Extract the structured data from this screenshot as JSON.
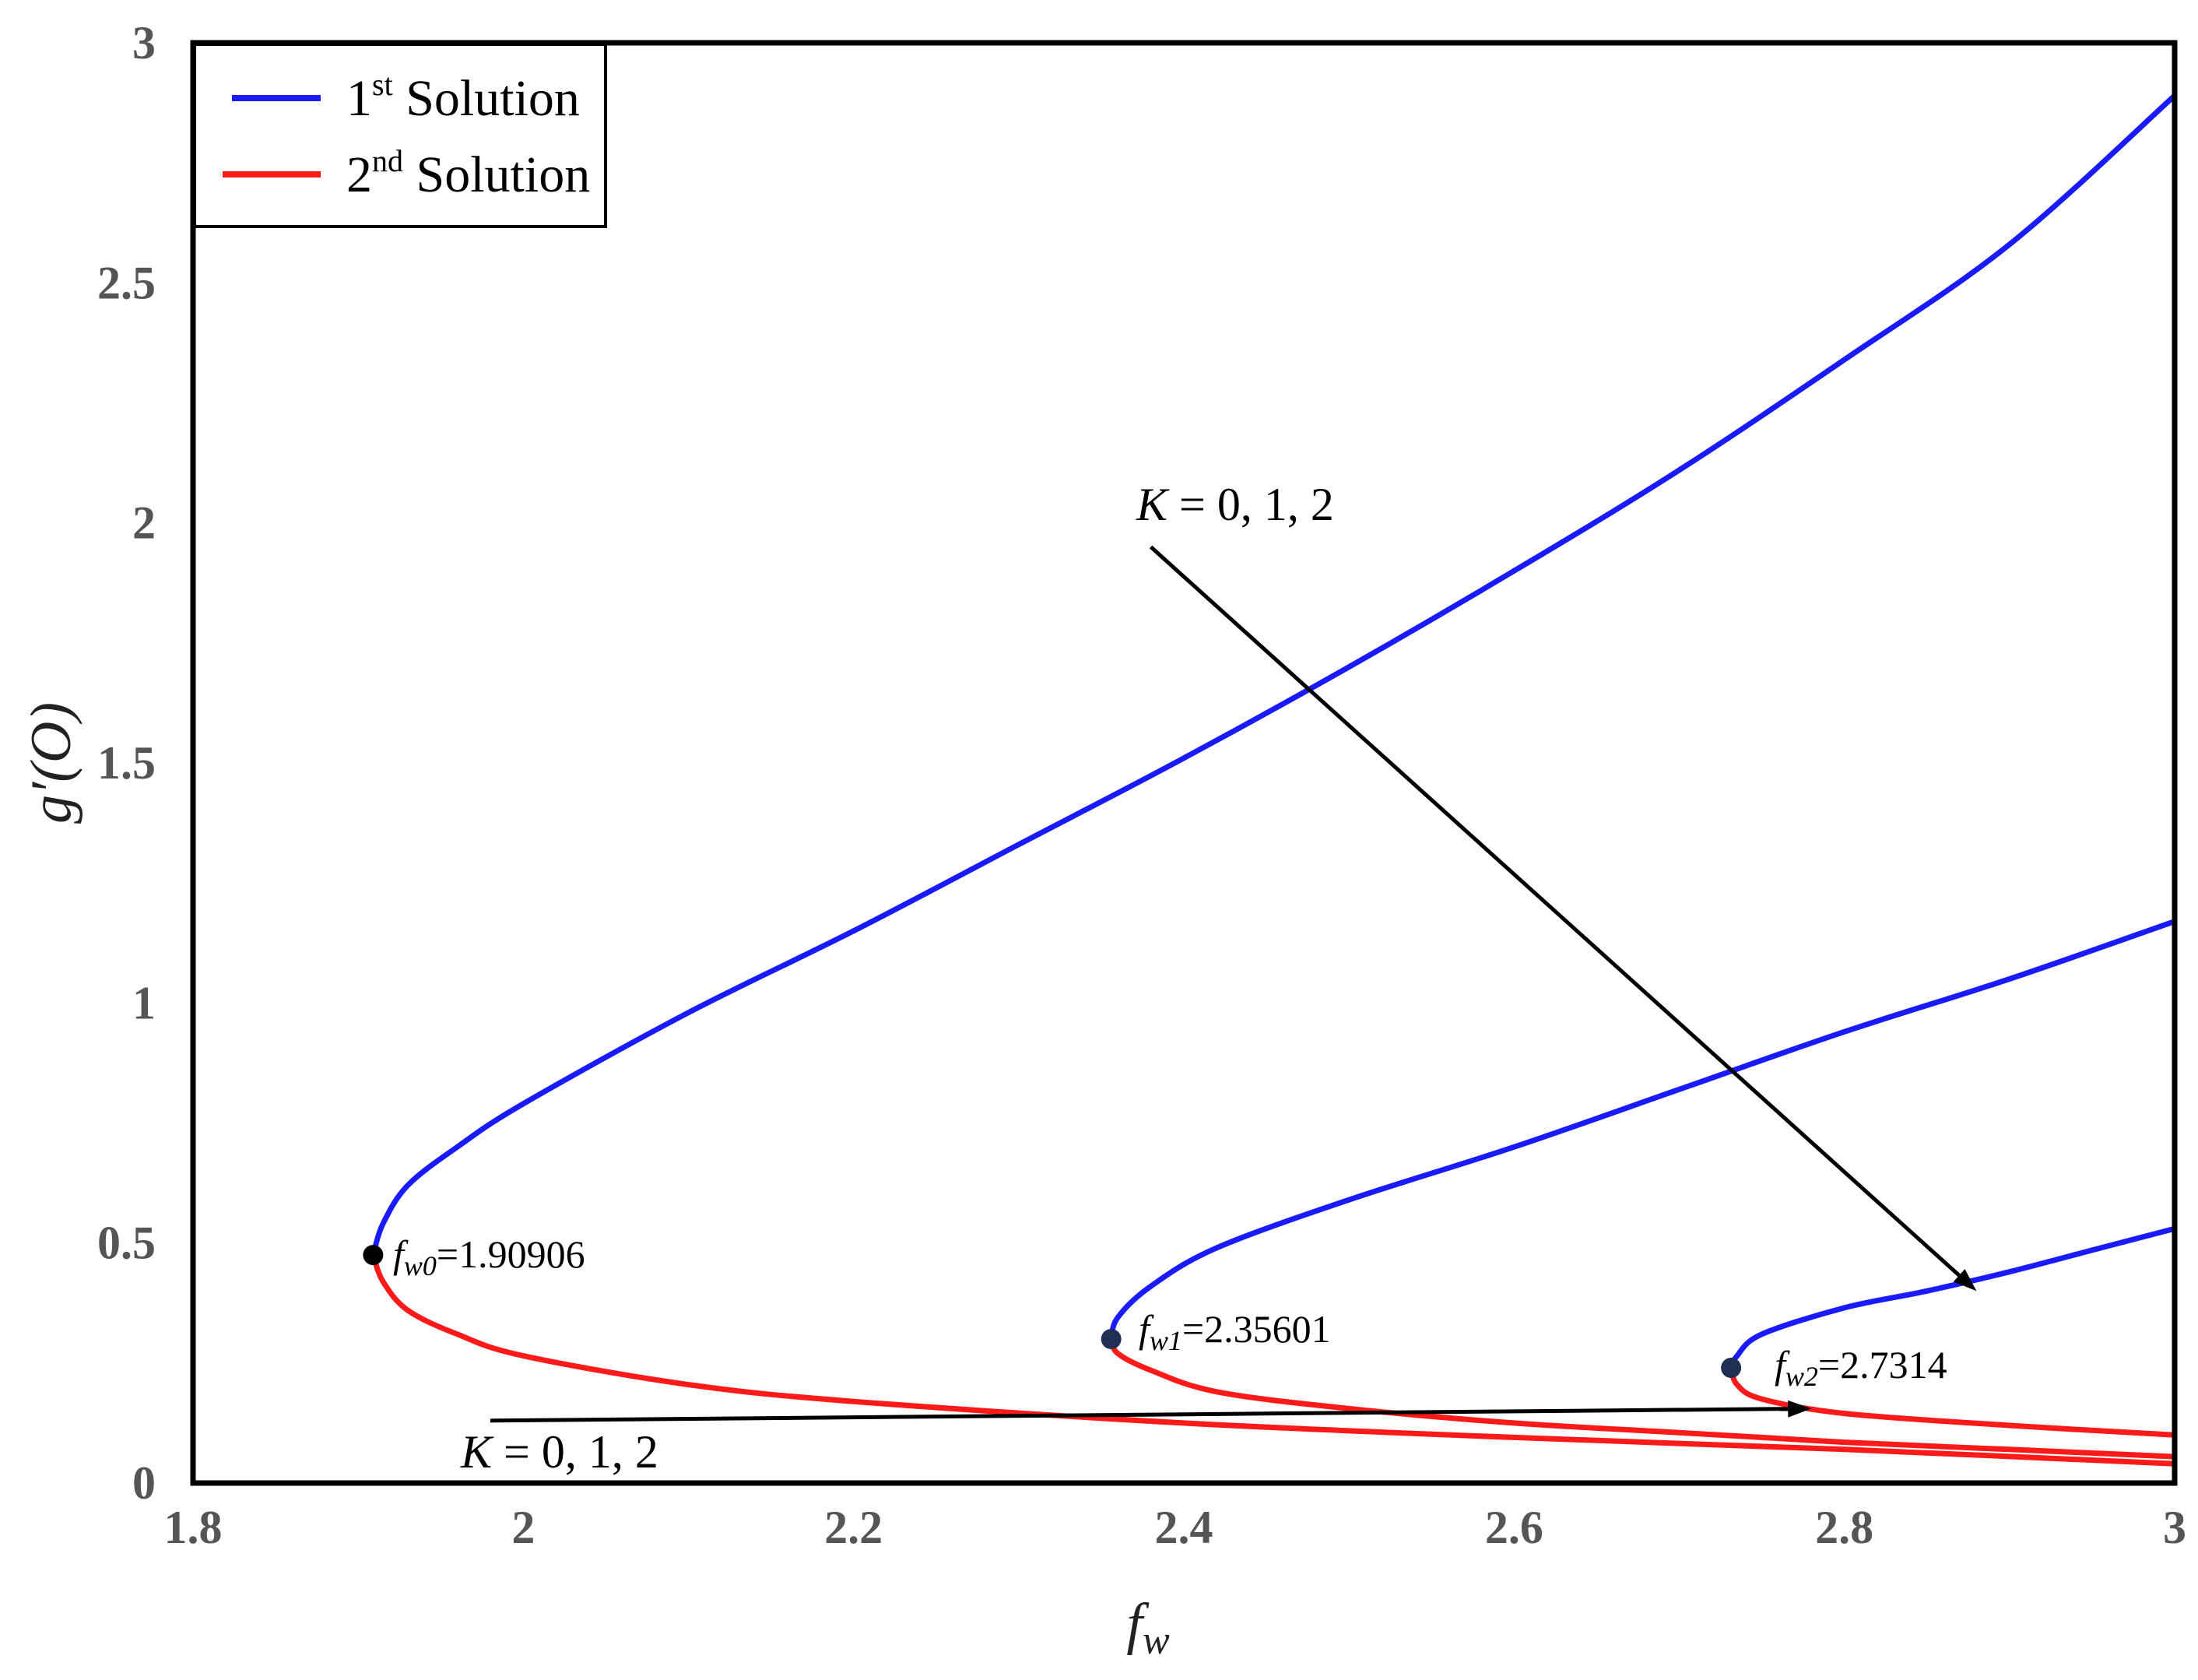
{
  "chart_data": {
    "type": "line",
    "xlabel": "f",
    "xlabel_sub": "w",
    "ylabel": "g′(O)",
    "xlim": [
      1.8,
      3
    ],
    "ylim": [
      0,
      3
    ],
    "xticks": [
      "1.8",
      "2",
      "2.2",
      "2.4",
      "2.6",
      "2.8",
      "3"
    ],
    "yticks": [
      "0",
      "0.5",
      "1",
      "1.5",
      "2",
      "2.5",
      "3"
    ],
    "grid": false,
    "legend_position": "top-left",
    "legend": [
      {
        "base": "1",
        "sup": "st",
        "rest": " Solution",
        "color": "#1a1aff"
      },
      {
        "base": "2",
        "sup": "nd",
        "rest": " Solution",
        "color": "#ff1a1a"
      }
    ],
    "series": [
      {
        "group": "1st Solution",
        "K": 0,
        "color": "#1a1aff",
        "x": [
          1.90906,
          1.915,
          1.93,
          1.96,
          2.0,
          2.1,
          2.2,
          2.3,
          2.4,
          2.5,
          2.6,
          2.7,
          2.8,
          2.9,
          3.0
        ],
        "y": [
          0.475,
          0.54,
          0.62,
          0.7,
          0.79,
          0.98,
          1.15,
          1.33,
          1.51,
          1.7,
          1.9,
          2.11,
          2.34,
          2.58,
          2.89
        ]
      },
      {
        "group": "1st Solution",
        "K": 1,
        "color": "#1a1aff",
        "x": [
          2.35601,
          2.36,
          2.38,
          2.42,
          2.5,
          2.6,
          2.7,
          2.8,
          2.9,
          3.0
        ],
        "y": [
          0.3,
          0.345,
          0.41,
          0.49,
          0.59,
          0.7,
          0.82,
          0.94,
          1.05,
          1.17
        ]
      },
      {
        "group": "1st Solution",
        "K": 2,
        "color": "#1a1aff",
        "x": [
          2.7314,
          2.735,
          2.75,
          2.8,
          2.85,
          2.9,
          2.95,
          3.0
        ],
        "y": [
          0.24,
          0.265,
          0.31,
          0.365,
          0.4,
          0.44,
          0.485,
          0.53
        ]
      },
      {
        "group": "2nd Solution",
        "K": 0,
        "color": "#ff1a1a",
        "x": [
          1.90906,
          1.915,
          1.93,
          1.96,
          2.0,
          2.1,
          2.2,
          2.4,
          2.6,
          2.8,
          3.0
        ],
        "y": [
          0.475,
          0.42,
          0.36,
          0.31,
          0.265,
          0.205,
          0.17,
          0.125,
          0.095,
          0.07,
          0.04
        ]
      },
      {
        "group": "2nd Solution",
        "K": 1,
        "color": "#ff1a1a",
        "x": [
          2.35601,
          2.36,
          2.38,
          2.42,
          2.5,
          2.6,
          2.7,
          2.8,
          2.9,
          3.0
        ],
        "y": [
          0.3,
          0.27,
          0.235,
          0.19,
          0.155,
          0.125,
          0.105,
          0.085,
          0.07,
          0.055
        ]
      },
      {
        "group": "2nd Solution",
        "K": 2,
        "color": "#ff1a1a",
        "x": [
          2.7314,
          2.735,
          2.75,
          2.8,
          2.9,
          3.0
        ],
        "y": [
          0.24,
          0.205,
          0.175,
          0.145,
          0.12,
          0.1
        ]
      }
    ],
    "critical_points": [
      {
        "label_f": "f",
        "label_sub": "w0",
        "label_val": "=1.90906",
        "x": 1.90906,
        "y": 0.475,
        "color": "#000000"
      },
      {
        "label_f": "f",
        "label_sub": "w1",
        "label_val": "=2.35601",
        "x": 2.35601,
        "y": 0.3,
        "color": "#1f2f55"
      },
      {
        "label_f": "f",
        "label_sub": "w2",
        "label_val": "=2.7314",
        "x": 2.7314,
        "y": 0.24,
        "color": "#1f2f55"
      }
    ],
    "annotations": [
      {
        "prefix": "K",
        "text": " = 0, 1, 2",
        "from": [
          2.38,
          1.95
        ],
        "to": [
          2.88,
          0.4
        ]
      },
      {
        "prefix": "K",
        "text": " = 0, 1, 2",
        "from": [
          1.98,
          0.13
        ],
        "to": [
          2.78,
          0.155
        ]
      }
    ]
  }
}
